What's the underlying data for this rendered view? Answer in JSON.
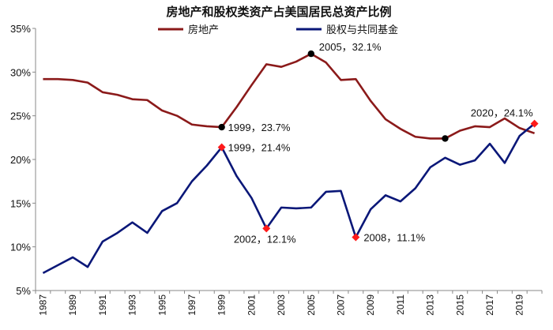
{
  "chart_data": {
    "type": "line",
    "title": "房地产和股权类资产占美国居民总资产比例",
    "x": [
      1987,
      1988,
      1989,
      1990,
      1991,
      1992,
      1993,
      1994,
      1995,
      1996,
      1997,
      1998,
      1999,
      2000,
      2001,
      2002,
      2003,
      2004,
      2005,
      2006,
      2007,
      2008,
      2009,
      2010,
      2011,
      2012,
      2013,
      2014,
      2015,
      2016,
      2017,
      2018,
      2019,
      2020
    ],
    "x_tick_labels": [
      "1987",
      "1989",
      "1991",
      "1993",
      "1995",
      "1997",
      "1999",
      "2001",
      "2003",
      "2005",
      "2007",
      "2009",
      "2011",
      "2013",
      "2015",
      "2017",
      "2019"
    ],
    "y_tick_labels": [
      "5%",
      "10%",
      "15%",
      "20%",
      "25%",
      "30%",
      "35%"
    ],
    "ylim": [
      5,
      35
    ],
    "y_unit": "%",
    "series": [
      {
        "name": "房地产",
        "color": "#8B1A1A",
        "values": [
          29.2,
          29.2,
          29.1,
          28.8,
          27.7,
          27.4,
          26.9,
          26.8,
          25.6,
          25.0,
          24.0,
          23.8,
          23.7,
          26.0,
          28.5,
          30.9,
          30.6,
          31.2,
          32.1,
          31.1,
          29.1,
          29.2,
          26.7,
          24.6,
          23.5,
          22.6,
          22.4,
          22.4,
          23.3,
          23.8,
          23.7,
          24.7,
          23.6,
          23.0
        ]
      },
      {
        "name": "股权与共同基金",
        "color": "#0A1778",
        "values": [
          7.0,
          7.9,
          8.8,
          7.7,
          10.6,
          11.6,
          12.8,
          11.6,
          14.1,
          15.0,
          17.5,
          19.3,
          21.4,
          18.1,
          15.6,
          12.1,
          14.5,
          14.4,
          14.5,
          16.3,
          16.4,
          11.1,
          14.3,
          15.9,
          15.2,
          16.7,
          19.1,
          20.2,
          19.4,
          19.9,
          21.8,
          19.6,
          22.7,
          24.1
        ]
      }
    ],
    "annotations": [
      {
        "text": "1999，23.7%",
        "x": 1999,
        "y": 23.7,
        "series": 0,
        "marker": "circle",
        "color": "#000000"
      },
      {
        "text": "2005，32.1%",
        "x": 2005,
        "y": 32.1,
        "series": 0,
        "marker": "circle",
        "color": "#000000"
      },
      {
        "text": "1999，21.4%",
        "x": 1999,
        "y": 21.4,
        "series": 1,
        "marker": "diamond",
        "color": "#FF1A1A"
      },
      {
        "text": "2002，12.1%",
        "x": 2002,
        "y": 12.1,
        "series": 1,
        "marker": "diamond",
        "color": "#FF1A1A"
      },
      {
        "text": "2008，11.1%",
        "x": 2008,
        "y": 11.1,
        "series": 1,
        "marker": "diamond",
        "color": "#FF1A1A"
      },
      {
        "text": "2020，24.1%",
        "x": 2020,
        "y": 24.1,
        "series": 1,
        "marker": "diamond",
        "color": "#FF1A1A"
      },
      {
        "text": "",
        "x": 2014,
        "y": 22.4,
        "series": 0,
        "marker": "circle",
        "color": "#000000"
      }
    ],
    "grid": false,
    "legend_position": "top"
  }
}
